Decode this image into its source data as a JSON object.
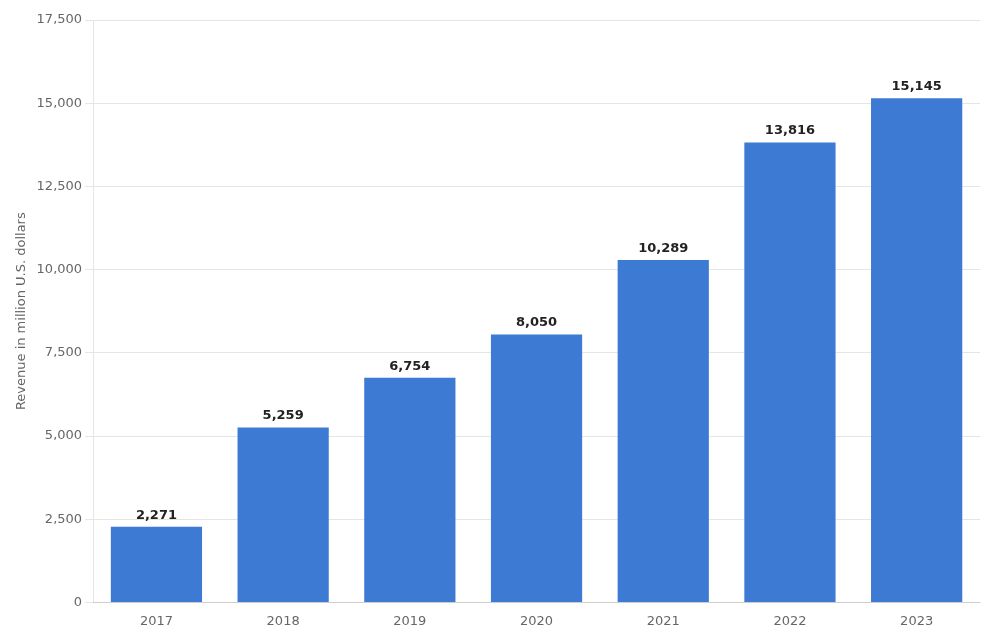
{
  "chart_data": {
    "type": "bar",
    "categories": [
      "2017",
      "2018",
      "2019",
      "2020",
      "2021",
      "2022",
      "2023"
    ],
    "values": [
      2271,
      5259,
      6754,
      8050,
      10289,
      13816,
      15145
    ],
    "value_labels": [
      "2,271",
      "5,259",
      "6,754",
      "8,050",
      "10,289",
      "13,816",
      "15,145"
    ],
    "data_labels": true,
    "color": "#3d7ad4",
    "ylabel": "Revenue in million U.S. dollars",
    "ylim": [
      0,
      17500
    ],
    "yticks": [
      0,
      {
        "value": 2500,
        "label": "2,500"
      },
      {
        "value": 5000,
        "label": "5,000"
      },
      {
        "value": 7500,
        "label": "7,500"
      },
      {
        "value": 10000,
        "label": "10,000"
      },
      {
        "value": 12500,
        "label": "12,500"
      },
      {
        "value": 15000,
        "label": "15,000"
      },
      {
        "value": 17500,
        "label": "17,500"
      }
    ],
    "grid": true
  }
}
